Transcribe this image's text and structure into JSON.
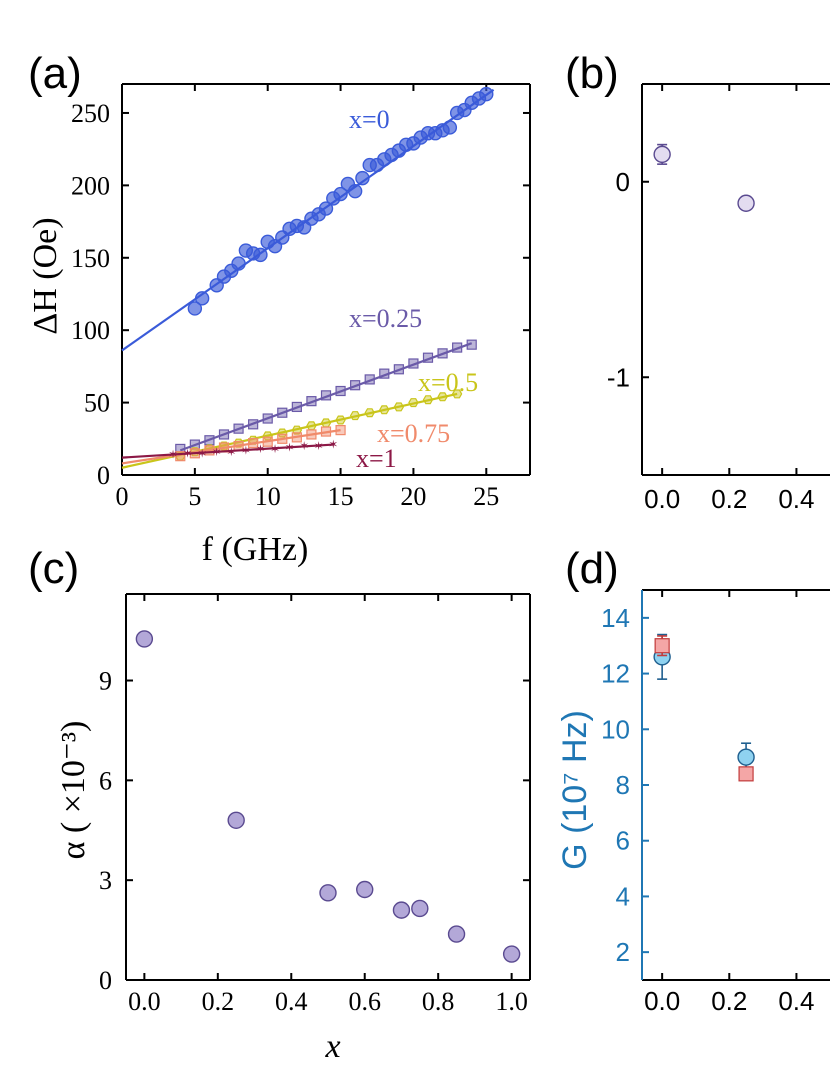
{
  "chart_data": [
    {
      "panel": "(a)",
      "type": "scatter",
      "xlabel": "f (GHz)",
      "ylabel": "ΔH (Oe)",
      "xlim": [
        0,
        28
      ],
      "ylim": [
        0,
        270
      ],
      "xticks": [
        "0",
        "5",
        "10",
        "15",
        "20",
        "25"
      ],
      "yticks": [
        "0",
        "50",
        "100",
        "150",
        "200",
        "250"
      ],
      "series": [
        {
          "name": "x=0",
          "color": "#3a5bd9",
          "marker": "circle",
          "fit": [
            [
              0,
              86
            ],
            [
              25.5,
              266
            ]
          ],
          "points": [
            [
              5,
              115
            ],
            [
              5.5,
              122
            ],
            [
              6.5,
              131
            ],
            [
              7,
              137
            ],
            [
              7.5,
              141
            ],
            [
              8,
              146
            ],
            [
              8.5,
              155
            ],
            [
              9,
              153
            ],
            [
              9.5,
              152
            ],
            [
              10,
              161
            ],
            [
              10.5,
              158
            ],
            [
              11,
              164
            ],
            [
              11.5,
              170
            ],
            [
              12,
              172
            ],
            [
              12.5,
              171
            ],
            [
              13,
              177
            ],
            [
              13.5,
              180
            ],
            [
              14,
              184
            ],
            [
              14.5,
              191
            ],
            [
              15,
              194
            ],
            [
              15.5,
              201
            ],
            [
              16,
              196
            ],
            [
              16.5,
              205
            ],
            [
              17,
              214
            ],
            [
              17.5,
              214
            ],
            [
              18,
              218
            ],
            [
              18.5,
              221
            ],
            [
              19,
              224
            ],
            [
              19.5,
              228
            ],
            [
              20,
              229
            ],
            [
              20.5,
              233
            ],
            [
              21,
              236
            ],
            [
              21.5,
              236
            ],
            [
              22,
              238
            ],
            [
              22.5,
              240
            ],
            [
              23,
              250
            ],
            [
              23.5,
              252
            ],
            [
              24,
              257
            ],
            [
              24.5,
              260
            ],
            [
              25,
              263
            ]
          ]
        },
        {
          "name": "x=0.25",
          "color": "#6a5aa8",
          "marker": "square",
          "fit": [
            [
              4,
              17
            ],
            [
              24,
              91
            ]
          ],
          "points": [
            [
              4,
              18
            ],
            [
              5,
              21
            ],
            [
              6,
              24
            ],
            [
              7,
              28
            ],
            [
              8,
              32
            ],
            [
              9,
              35
            ],
            [
              10,
              39
            ],
            [
              11,
              43
            ],
            [
              12,
              47
            ],
            [
              13,
              51
            ],
            [
              14,
              55
            ],
            [
              15,
              58
            ],
            [
              16,
              62
            ],
            [
              17,
              66
            ],
            [
              18,
              70
            ],
            [
              19,
              73
            ],
            [
              20,
              77
            ],
            [
              21,
              81
            ],
            [
              22,
              84
            ],
            [
              23,
              88
            ],
            [
              24,
              90
            ]
          ]
        },
        {
          "name": "x=0.5",
          "color": "#c9c51a",
          "marker": "hexagon",
          "fit": [
            [
              0,
              5
            ],
            [
              23,
              56
            ]
          ],
          "points": [
            [
              4,
              13
            ],
            [
              5,
              16
            ],
            [
              6,
              18
            ],
            [
              7,
              20
            ],
            [
              8,
              22
            ],
            [
              9,
              24
            ],
            [
              10,
              27
            ],
            [
              11,
              29
            ],
            [
              12,
              31
            ],
            [
              13,
              34
            ],
            [
              14,
              36
            ],
            [
              15,
              38
            ],
            [
              16,
              41
            ],
            [
              17,
              43
            ],
            [
              18,
              45
            ],
            [
              19,
              47
            ],
            [
              20,
              50
            ],
            [
              21,
              52
            ],
            [
              22,
              54
            ],
            [
              23,
              56
            ]
          ]
        },
        {
          "name": "x=0.75",
          "color": "#f08a6b",
          "marker": "square",
          "fit": [
            [
              0,
              8
            ],
            [
              15,
              31
            ]
          ],
          "points": [
            [
              4,
              13
            ],
            [
              5,
              15
            ],
            [
              6,
              17
            ],
            [
              7,
              19
            ],
            [
              8,
              20
            ],
            [
              9,
              22
            ],
            [
              10,
              23
            ],
            [
              11,
              25
            ],
            [
              12,
              26
            ],
            [
              13,
              28
            ],
            [
              14,
              30
            ],
            [
              15,
              31
            ]
          ]
        },
        {
          "name": "x=1",
          "color": "#8c1846",
          "marker": "star",
          "fit": [
            [
              0,
              12
            ],
            [
              14.5,
              21
            ]
          ],
          "points": [
            [
              3.5,
              14
            ],
            [
              4.5,
              15
            ],
            [
              5.5,
              15
            ],
            [
              6.5,
              16
            ],
            [
              7.5,
              16
            ],
            [
              8.5,
              17
            ],
            [
              9.5,
              18
            ],
            [
              10.5,
              18
            ],
            [
              11.5,
              19
            ],
            [
              12.5,
              20
            ],
            [
              13.5,
              20
            ],
            [
              14.5,
              21
            ]
          ]
        }
      ]
    },
    {
      "panel": "(b)",
      "type": "scatter",
      "xlim": [
        -0.06,
        0.5
      ],
      "ylim": [
        -1.5,
        0.5
      ],
      "xticks": [
        "0.0",
        "0.2",
        "0.4"
      ],
      "yticks": [
        "0",
        "-1"
      ],
      "series": [
        {
          "color": "#5a4a90",
          "fill": "#e3dcf0",
          "points": [
            [
              0.0,
              0.14,
              0.05
            ],
            [
              0.25,
              -0.11,
              0.03
            ]
          ]
        }
      ]
    },
    {
      "panel": "(c)",
      "type": "scatter",
      "xlabel": "x",
      "ylabel": "α ( ×10⁻³)",
      "xlim": [
        -0.05,
        1.05
      ],
      "ylim": [
        0,
        11.6
      ],
      "xticks": [
        "0.0",
        "0.2",
        "0.4",
        "0.6",
        "0.8",
        "1.0"
      ],
      "yticks": [
        "0",
        "3",
        "6",
        "9"
      ],
      "series": [
        {
          "color": "#5a4a90",
          "fill": "#b3a8d8",
          "points": [
            [
              0.0,
              10.25
            ],
            [
              0.25,
              4.8
            ],
            [
              0.5,
              2.62
            ],
            [
              0.6,
              2.72
            ],
            [
              0.7,
              2.1
            ],
            [
              0.75,
              2.15
            ],
            [
              0.85,
              1.38
            ],
            [
              1.0,
              0.78
            ]
          ]
        }
      ]
    },
    {
      "panel": "(d)",
      "type": "scatter",
      "ylabel": "G (10⁷ Hz)",
      "xlim": [
        -0.06,
        0.5
      ],
      "ylim": [
        1,
        15
      ],
      "xticks": [
        "0.0",
        "0.2",
        "0.4"
      ],
      "yticks": [
        "2",
        "4",
        "6",
        "8",
        "10",
        "12",
        "14"
      ],
      "axis_color": "#1f77b4",
      "series": [
        {
          "marker": "circle",
          "color": "#1f5f8f",
          "fill": "#8fd2f0",
          "points": [
            [
              0.0,
              12.6,
              0.8
            ],
            [
              0.25,
              9.0,
              0.5
            ]
          ]
        },
        {
          "marker": "square",
          "color": "#c23b3b",
          "fill": "#f4a6a6",
          "points": [
            [
              0.0,
              13.0,
              0.35
            ],
            [
              0.25,
              8.4,
              0.0
            ]
          ]
        }
      ]
    }
  ]
}
